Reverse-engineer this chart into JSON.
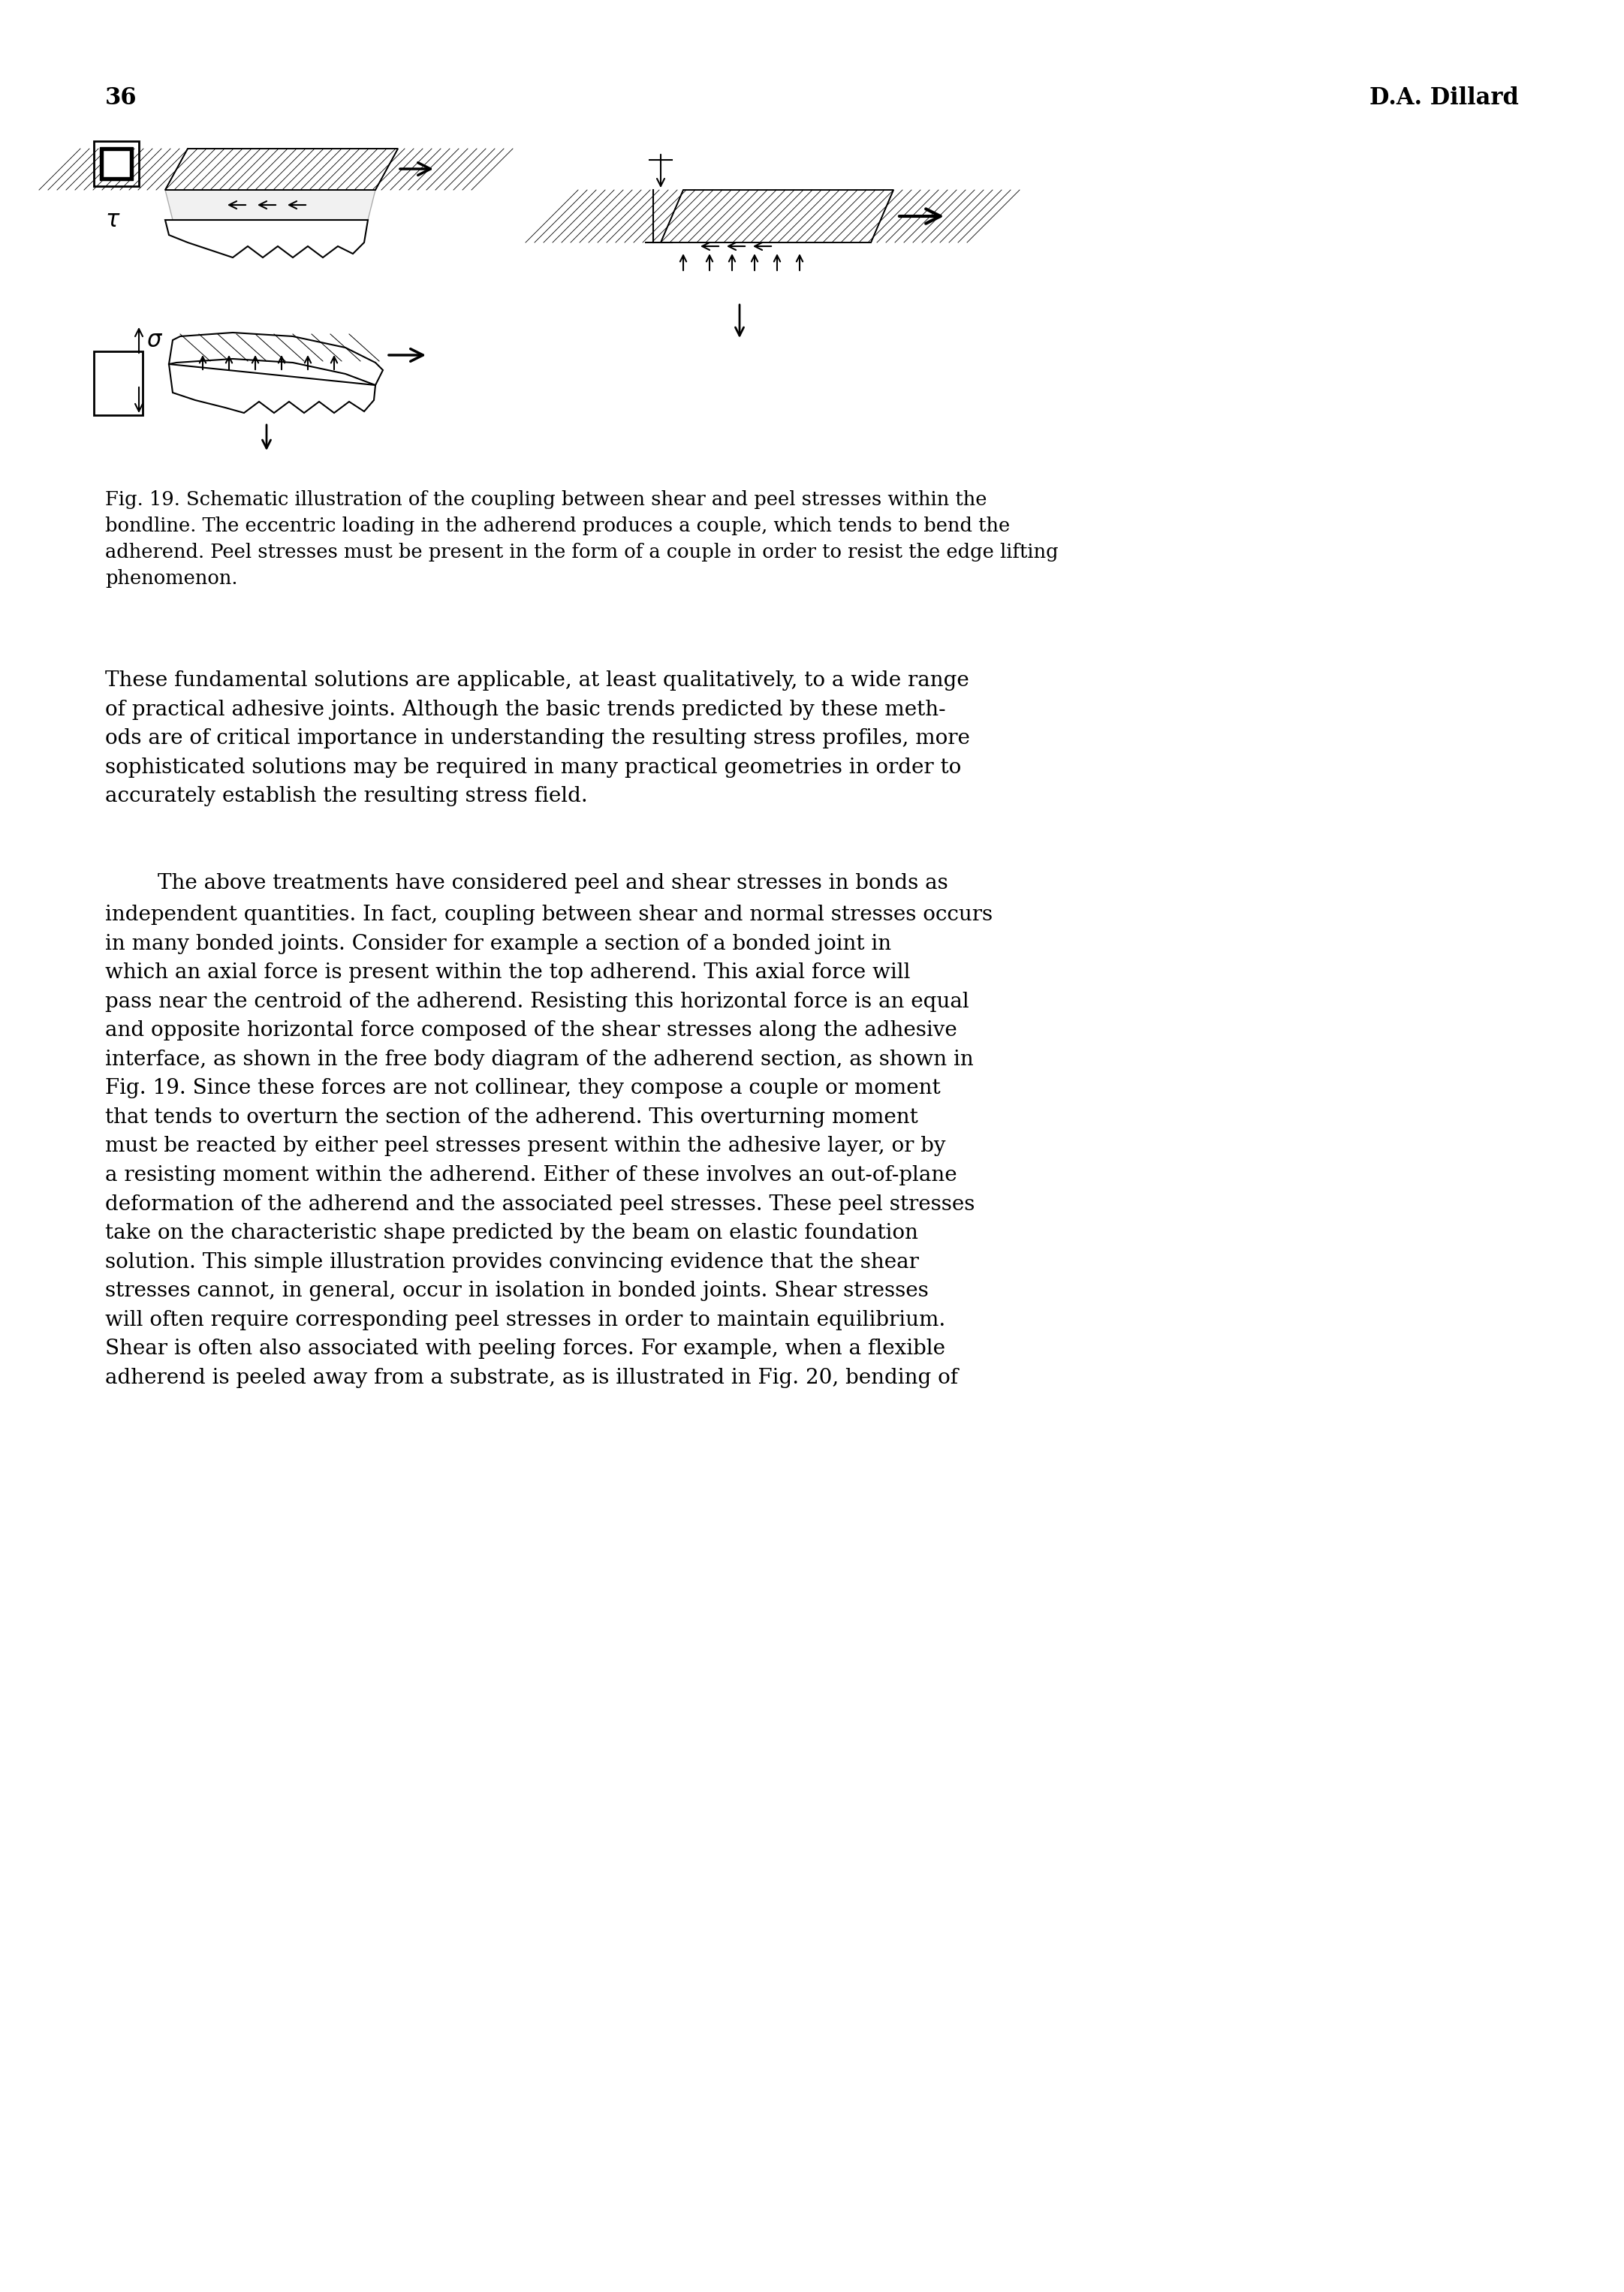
{
  "page_number": "36",
  "author": "D.A. Dillard",
  "fig_caption": "Fig. 19. Schematic illustration of the coupling between shear and peel stresses within the\nbondline. The eccentric loading in the adherend produces a couple, which tends to bend the\nadherend. Peel stresses must be present in the form of a couple in order to resist the edge lifting\nphenomenon.",
  "para1": "These fundamental solutions are applicable, at least qualitatively, to a wide range\nof practical adhesive joints. Although the basic trends predicted by these meth-\nods are of critical importance in understanding the resulting stress profiles, more\nsophisticated solutions may be required in many practical geometries in order to\naccurately establish the resulting stress field.",
  "para2": "The above treatments have considered peel and shear stresses in bonds as\nindependent quantities. In fact, coupling between shear and normal stresses occurs\nin many bonded joints. Consider for example a section of a bonded joint in\nwhich an axial force is present within the top adherend. This axial force will\npass near the centroid of the adherend. Resisting this horizontal force is an equal\nand opposite horizontal force composed of the shear stresses along the adhesive\ninterface, as shown in the free body diagram of the adherend section, as shown in\nFig. 19. Since these forces are not collinear, they compose a couple or moment\nthat tends to overturn the section of the adherend. This overturning moment\nmust be reacted by either peel stresses present within the adhesive layer, or by\na resisting moment within the adherend. Either of these involves an out-of-plane\ndeformation of the adherend and the associated peel stresses. These peel stresses\ntake on the characteristic shape predicted by the beam on elastic foundation\nsolution. This simple illustration provides convincing evidence that the shear\nstresses cannot, in general, occur in isolation in bonded joints. Shear stresses\nwill often require corresponding peel stresses in order to maintain equilibrium.\nShear is often also associated with peeling forces. For example, when a flexible\nadherend is peeled away from a substrate, as is illustrated in Fig. 20, bending of",
  "bg_color": "#ffffff",
  "text_color": "#000000"
}
